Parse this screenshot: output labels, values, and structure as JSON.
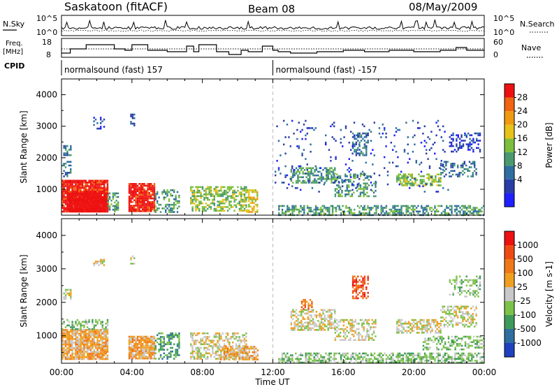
{
  "header": {
    "station": "Saskatoon (fitACF)",
    "beam": "Beam 08",
    "date": "08/May/2009"
  },
  "top_panels": {
    "nsky_label": "N.Sky",
    "nsearch_label": "N.Search",
    "nsky_ticks": [
      "10^5",
      "10^0"
    ],
    "nsearch_ticks": [
      "10^5",
      "10^0"
    ],
    "freq_label_1": "Freq.",
    "freq_label_2": "[MHz]",
    "freq_ticks": [
      "18",
      "8"
    ],
    "nave_label": "Nave",
    "nave_ticks": [
      "60",
      "0"
    ],
    "cpid_label": "CPID",
    "cpid_segments": [
      {
        "text": "normalsound (fast) 157",
        "start_h": 0,
        "end_h": 12
      },
      {
        "text": "normalsound (fast) -157",
        "start_h": 12,
        "end_h": 24
      }
    ],
    "freq_mhz": [
      {
        "h0": 0.0,
        "h1": 0.5,
        "v": 10
      },
      {
        "h0": 0.5,
        "h1": 1.4,
        "v": 13
      },
      {
        "h0": 1.4,
        "h1": 3.0,
        "v": 16
      },
      {
        "h0": 3.0,
        "h1": 3.6,
        "v": 13
      },
      {
        "h0": 3.6,
        "h1": 4.0,
        "v": 12
      },
      {
        "h0": 4.0,
        "h1": 4.9,
        "v": 16
      },
      {
        "h0": 4.9,
        "h1": 6.0,
        "v": 12
      },
      {
        "h0": 6.0,
        "h1": 7.1,
        "v": 11
      },
      {
        "h0": 7.1,
        "h1": 7.5,
        "v": 15
      },
      {
        "h0": 7.5,
        "h1": 7.8,
        "v": 11
      },
      {
        "h0": 7.8,
        "h1": 8.8,
        "v": 16
      },
      {
        "h0": 8.8,
        "h1": 9.5,
        "v": 11
      },
      {
        "h0": 9.5,
        "h1": 10.2,
        "v": 9
      },
      {
        "h0": 10.2,
        "h1": 10.6,
        "v": 12
      },
      {
        "h0": 10.6,
        "h1": 11.4,
        "v": 11
      },
      {
        "h0": 11.4,
        "h1": 12.0,
        "v": 15
      },
      {
        "h0": 12.0,
        "h1": 12.3,
        "v": 12
      },
      {
        "h0": 12.3,
        "h1": 13.0,
        "v": 11
      },
      {
        "h0": 13.0,
        "h1": 14.5,
        "v": 10
      },
      {
        "h0": 14.5,
        "h1": 16.0,
        "v": 11
      },
      {
        "h0": 16.0,
        "h1": 17.2,
        "v": 12
      },
      {
        "h0": 17.2,
        "h1": 18.6,
        "v": 11
      },
      {
        "h0": 18.6,
        "h1": 20.0,
        "v": 12
      },
      {
        "h0": 20.0,
        "h1": 21.5,
        "v": 11
      },
      {
        "h0": 21.5,
        "h1": 22.4,
        "v": 12
      },
      {
        "h0": 22.4,
        "h1": 23.0,
        "v": 14
      },
      {
        "h0": 23.0,
        "h1": 24.0,
        "v": 12
      }
    ],
    "nave_level": 30
  },
  "chart_data": [
    {
      "type": "heatmap",
      "name": "power",
      "ylabel": "Slant Range [km]",
      "xlabel": "Time UT",
      "xlim_hours": [
        0,
        24
      ],
      "ylim_km": [
        180,
        4500
      ],
      "yticks": [
        1000,
        2000,
        3000,
        4000
      ],
      "xtick_labels": [
        "00:00",
        "04:00",
        "08:00",
        "12:00",
        "16:00",
        "20:00",
        "00:00"
      ],
      "colorbar_label": "Power [dB]",
      "colorbar_ticks": [
        "28",
        "24",
        "20",
        "16",
        "12",
        "8",
        "4"
      ],
      "colors": [
        "#1f1fff",
        "#2a3ea8",
        "#2f6ea0",
        "#4a9a70",
        "#7bbf3a",
        "#e7c21a",
        "#f09a12",
        "#f06412",
        "#ee1111"
      ],
      "echo_regions": [
        {
          "h0": 0.0,
          "h1": 2.6,
          "r0": 300,
          "r1": 1300,
          "level": 8,
          "density": 0.95
        },
        {
          "h0": 0.3,
          "h1": 2.6,
          "r0": 300,
          "r1": 900,
          "level": 9,
          "density": 0.95
        },
        {
          "h0": 2.6,
          "h1": 3.2,
          "r0": 300,
          "r1": 900,
          "level": 3,
          "density": 0.6
        },
        {
          "h0": 3.8,
          "h1": 5.3,
          "r0": 300,
          "r1": 1200,
          "level": 8,
          "density": 0.9
        },
        {
          "h0": 5.3,
          "h1": 6.7,
          "r0": 300,
          "r1": 1000,
          "level": 3,
          "density": 0.45
        },
        {
          "h0": 7.3,
          "h1": 10.5,
          "r0": 300,
          "r1": 1100,
          "level": 4,
          "density": 0.6
        },
        {
          "h0": 10.5,
          "h1": 11.1,
          "r0": 300,
          "r1": 1000,
          "level": 5,
          "density": 0.6
        },
        {
          "h0": 0.1,
          "h1": 0.5,
          "r0": 2100,
          "r1": 2400,
          "level": 2,
          "density": 0.6
        },
        {
          "h0": 0.0,
          "h1": 0.5,
          "r0": 1400,
          "r1": 1900,
          "level": 2,
          "density": 0.35
        },
        {
          "h0": 1.8,
          "h1": 2.4,
          "r0": 2900,
          "r1": 3300,
          "level": 1,
          "density": 0.25
        },
        {
          "h0": 3.9,
          "h1": 4.1,
          "r0": 3000,
          "r1": 3400,
          "level": 1,
          "density": 0.5
        },
        {
          "h0": 12.3,
          "h1": 24.0,
          "r0": 200,
          "r1": 500,
          "level": 3,
          "density": 0.55
        },
        {
          "h0": 13.0,
          "h1": 15.5,
          "r0": 1200,
          "r1": 1700,
          "level": 3,
          "density": 0.55
        },
        {
          "h0": 15.5,
          "h1": 17.8,
          "r0": 800,
          "r1": 1500,
          "level": 3,
          "density": 0.45
        },
        {
          "h0": 16.5,
          "h1": 17.4,
          "r0": 2100,
          "r1": 2800,
          "level": 2,
          "density": 0.45
        },
        {
          "h0": 19.0,
          "h1": 21.5,
          "r0": 1100,
          "r1": 1500,
          "level": 4,
          "density": 0.6
        },
        {
          "h0": 21.5,
          "h1": 23.5,
          "r0": 1400,
          "r1": 1900,
          "level": 2,
          "density": 0.45
        },
        {
          "h0": 22.0,
          "h1": 23.8,
          "r0": 2200,
          "r1": 2800,
          "level": 1,
          "density": 0.4
        },
        {
          "h0": 12.1,
          "h1": 22.0,
          "r0": 900,
          "r1": 3200,
          "level": 1,
          "density": 0.06
        }
      ]
    },
    {
      "type": "heatmap",
      "name": "velocity",
      "ylabel": "Slant Range [km]",
      "xlabel": "Time UT",
      "xlim_hours": [
        0,
        24
      ],
      "ylim_km": [
        180,
        4500
      ],
      "yticks": [
        1000,
        2000,
        3000,
        4000
      ],
      "xtick_labels": [
        "00:00",
        "04:00",
        "08:00",
        "12:00",
        "16:00",
        "20:00",
        "00:00"
      ],
      "colorbar_label": "Velocity [m s-1]",
      "colorbar_ticks": [
        "1000",
        "500",
        "100",
        "25",
        "-25",
        "-100",
        "-500",
        "-1000"
      ],
      "colors": [
        "#2040c0",
        "#2f6ea0",
        "#3e9a5a",
        "#7cc24a",
        "#c8c8c8",
        "#f0a020",
        "#f07818",
        "#f04a14",
        "#ee1111"
      ],
      "echo_regions": [
        {
          "h0": 0.0,
          "h1": 2.6,
          "r0": 300,
          "r1": 1200,
          "level": 5,
          "density": 0.9
        },
        {
          "h0": 0.0,
          "h1": 2.6,
          "r0": 1200,
          "r1": 1500,
          "level": 3,
          "density": 0.5
        },
        {
          "h0": 3.8,
          "h1": 5.3,
          "r0": 300,
          "r1": 1000,
          "level": 5,
          "density": 0.85
        },
        {
          "h0": 5.3,
          "h1": 6.7,
          "r0": 300,
          "r1": 1100,
          "level": 2,
          "density": 0.5
        },
        {
          "h0": 7.3,
          "h1": 10.5,
          "r0": 300,
          "r1": 1100,
          "level": 4,
          "density": 0.55
        },
        {
          "h0": 9.0,
          "h1": 11.1,
          "r0": 300,
          "r1": 700,
          "level": 5,
          "density": 0.6
        },
        {
          "h0": 0.1,
          "h1": 0.5,
          "r0": 2100,
          "r1": 2400,
          "level": 4,
          "density": 0.6
        },
        {
          "h0": 1.8,
          "h1": 2.4,
          "r0": 3100,
          "r1": 3300,
          "level": 4,
          "density": 0.5
        },
        {
          "h0": 3.9,
          "h1": 4.1,
          "r0": 3100,
          "r1": 3400,
          "level": 4,
          "density": 0.5
        },
        {
          "h0": 12.3,
          "h1": 24.0,
          "r0": 200,
          "r1": 500,
          "level": 3,
          "density": 0.6
        },
        {
          "h0": 13.0,
          "h1": 15.5,
          "r0": 1200,
          "r1": 1800,
          "level": 4,
          "density": 0.55
        },
        {
          "h0": 15.5,
          "h1": 17.8,
          "r0": 900,
          "r1": 1500,
          "level": 4,
          "density": 0.45
        },
        {
          "h0": 16.5,
          "h1": 17.4,
          "r0": 2100,
          "r1": 2800,
          "level": 7,
          "density": 0.5
        },
        {
          "h0": 13.6,
          "h1": 14.2,
          "r0": 1800,
          "r1": 2100,
          "level": 6,
          "density": 0.5
        },
        {
          "h0": 19.0,
          "h1": 21.5,
          "r0": 1100,
          "r1": 1500,
          "level": 4,
          "density": 0.6
        },
        {
          "h0": 21.5,
          "h1": 23.5,
          "r0": 1300,
          "r1": 1900,
          "level": 4,
          "density": 0.45
        },
        {
          "h0": 22.0,
          "h1": 23.8,
          "r0": 2200,
          "r1": 2800,
          "level": 3,
          "density": 0.4
        },
        {
          "h0": 20.5,
          "h1": 24.0,
          "r0": 600,
          "r1": 1000,
          "level": 3,
          "density": 0.45
        }
      ]
    }
  ]
}
